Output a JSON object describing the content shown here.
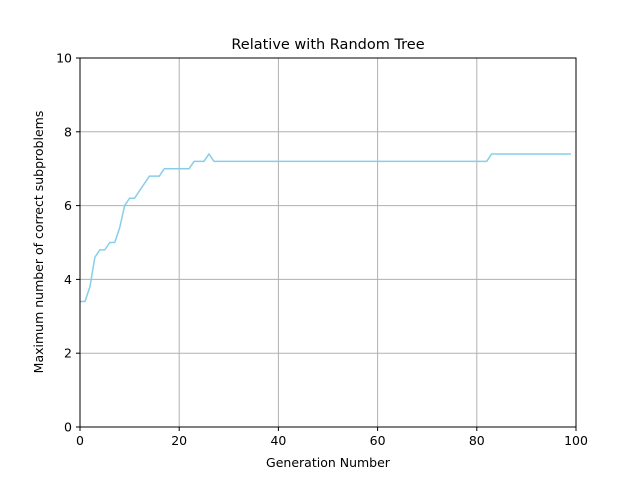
{
  "chart_data": {
    "type": "line",
    "title": "Relative with Random Tree",
    "xlabel": "Generation Number",
    "ylabel": "Maximum number of correct subproblems",
    "xlim": [
      0,
      100
    ],
    "ylim": [
      0,
      10
    ],
    "xticks": [
      0,
      20,
      40,
      60,
      80,
      100
    ],
    "yticks": [
      0,
      2,
      4,
      6,
      8,
      10
    ],
    "xtick_labels": [
      "0",
      "20",
      "40",
      "60",
      "80",
      "100"
    ],
    "ytick_labels": [
      "0",
      "2",
      "4",
      "6",
      "8",
      "10"
    ],
    "grid": true,
    "legend": false,
    "colors": {
      "line": "#87ceeb",
      "grid": "#b0b0b0",
      "axes": "#000000"
    },
    "series": [
      {
        "x": [
          0,
          1,
          2,
          3,
          4,
          5,
          6,
          7,
          8,
          9,
          10,
          11,
          12,
          13,
          14,
          15,
          16,
          17,
          18,
          19,
          20,
          21,
          22,
          23,
          24,
          25,
          26,
          27,
          28,
          29,
          30,
          31,
          32,
          33,
          34,
          35,
          36,
          37,
          38,
          39,
          40,
          41,
          42,
          43,
          44,
          45,
          46,
          47,
          48,
          49,
          50,
          51,
          52,
          53,
          54,
          55,
          56,
          57,
          58,
          59,
          60,
          61,
          62,
          63,
          64,
          65,
          66,
          67,
          68,
          69,
          70,
          71,
          72,
          73,
          74,
          75,
          76,
          77,
          78,
          79,
          80,
          81,
          82,
          83,
          84,
          85,
          86,
          87,
          88,
          89,
          90,
          91,
          92,
          93,
          94,
          95,
          96,
          97,
          98,
          99
        ],
        "y": [
          3.4,
          3.4,
          3.8,
          4.6,
          4.8,
          4.8,
          5.0,
          5.0,
          5.4,
          6.0,
          6.2,
          6.2,
          6.4,
          6.6,
          6.8,
          6.8,
          6.8,
          7.0,
          7.0,
          7.0,
          7.0,
          7.0,
          7.0,
          7.2,
          7.2,
          7.2,
          7.4,
          7.2,
          7.2,
          7.2,
          7.2,
          7.2,
          7.2,
          7.2,
          7.2,
          7.2,
          7.2,
          7.2,
          7.2,
          7.2,
          7.2,
          7.2,
          7.2,
          7.2,
          7.2,
          7.2,
          7.2,
          7.2,
          7.2,
          7.2,
          7.2,
          7.2,
          7.2,
          7.2,
          7.2,
          7.2,
          7.2,
          7.2,
          7.2,
          7.2,
          7.2,
          7.2,
          7.2,
          7.2,
          7.2,
          7.2,
          7.2,
          7.2,
          7.2,
          7.2,
          7.2,
          7.2,
          7.2,
          7.2,
          7.2,
          7.2,
          7.2,
          7.2,
          7.2,
          7.2,
          7.2,
          7.2,
          7.2,
          7.4,
          7.4,
          7.4,
          7.4,
          7.4,
          7.4,
          7.4,
          7.4,
          7.4,
          7.4,
          7.4,
          7.4,
          7.4,
          7.4,
          7.4,
          7.4,
          7.4
        ]
      }
    ]
  }
}
